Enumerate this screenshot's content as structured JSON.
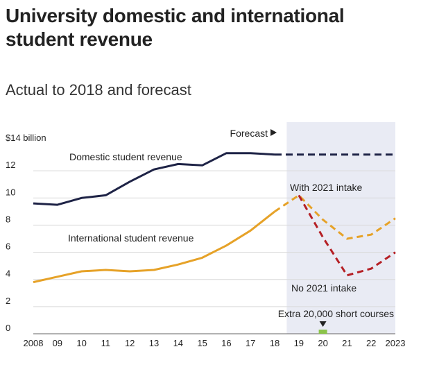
{
  "title": "University domestic and international student revenue",
  "subtitle": "Actual to 2018 and forecast",
  "chart_data": {
    "type": "line",
    "title": "University domestic and international student revenue",
    "subtitle": "Actual to 2018 and forecast",
    "x_tick_labels": [
      "2008",
      "09",
      "10",
      "11",
      "12",
      "13",
      "14",
      "15",
      "16",
      "17",
      "18",
      "19",
      "20",
      "21",
      "22",
      "2023"
    ],
    "x_values": [
      2008,
      2009,
      2010,
      2011,
      2012,
      2013,
      2014,
      2015,
      2016,
      2017,
      2018,
      2019,
      2020,
      2021,
      2022,
      2023
    ],
    "y_unit_label": "$14 billion",
    "y_ticks": [
      0,
      2,
      4,
      6,
      8,
      10,
      12
    ],
    "ylim": [
      0,
      14
    ],
    "xlim": [
      2008,
      2023
    ],
    "forecast_start": 2018.5,
    "forecast_label": "Forecast",
    "grid": true,
    "series": [
      {
        "name": "Domestic student revenue",
        "color": "#1e2346",
        "actual": [
          [
            2008,
            9.6
          ],
          [
            2009,
            9.5
          ],
          [
            2010,
            10.0
          ],
          [
            2011,
            10.2
          ],
          [
            2012,
            11.2
          ],
          [
            2013,
            12.1
          ],
          [
            2014,
            12.5
          ],
          [
            2015,
            12.4
          ],
          [
            2016,
            13.3
          ],
          [
            2017,
            13.3
          ],
          [
            2018,
            13.2
          ]
        ],
        "forecast": [
          [
            2018,
            13.2
          ],
          [
            2019,
            13.2
          ],
          [
            2020,
            13.2
          ],
          [
            2021,
            13.2
          ],
          [
            2022,
            13.2
          ],
          [
            2023,
            13.2
          ]
        ]
      },
      {
        "name": "International student revenue",
        "color": "#e6a228",
        "actual": [
          [
            2008,
            3.8
          ],
          [
            2009,
            4.2
          ],
          [
            2010,
            4.6
          ],
          [
            2011,
            4.7
          ],
          [
            2012,
            4.6
          ],
          [
            2013,
            4.7
          ],
          [
            2014,
            5.1
          ],
          [
            2015,
            5.6
          ],
          [
            2016,
            6.5
          ],
          [
            2017,
            7.6
          ],
          [
            2018,
            9.0
          ]
        ]
      },
      {
        "name": "With 2021 intake",
        "color": "#e6a228",
        "forecast": [
          [
            2018,
            9.0
          ],
          [
            2019,
            10.2
          ],
          [
            2020,
            8.4
          ],
          [
            2021,
            7.0
          ],
          [
            2022,
            7.3
          ],
          [
            2023,
            8.5
          ]
        ]
      },
      {
        "name": "No 2021 intake",
        "color": "#b52025",
        "forecast": [
          [
            2019,
            10.2
          ],
          [
            2020,
            7.1
          ],
          [
            2021,
            4.3
          ],
          [
            2022,
            4.8
          ],
          [
            2023,
            6.0
          ]
        ]
      }
    ],
    "annotations": [
      {
        "text": "Extra 20,000 short courses",
        "x": 2020,
        "marker_color": "#8bc34a"
      }
    ]
  }
}
